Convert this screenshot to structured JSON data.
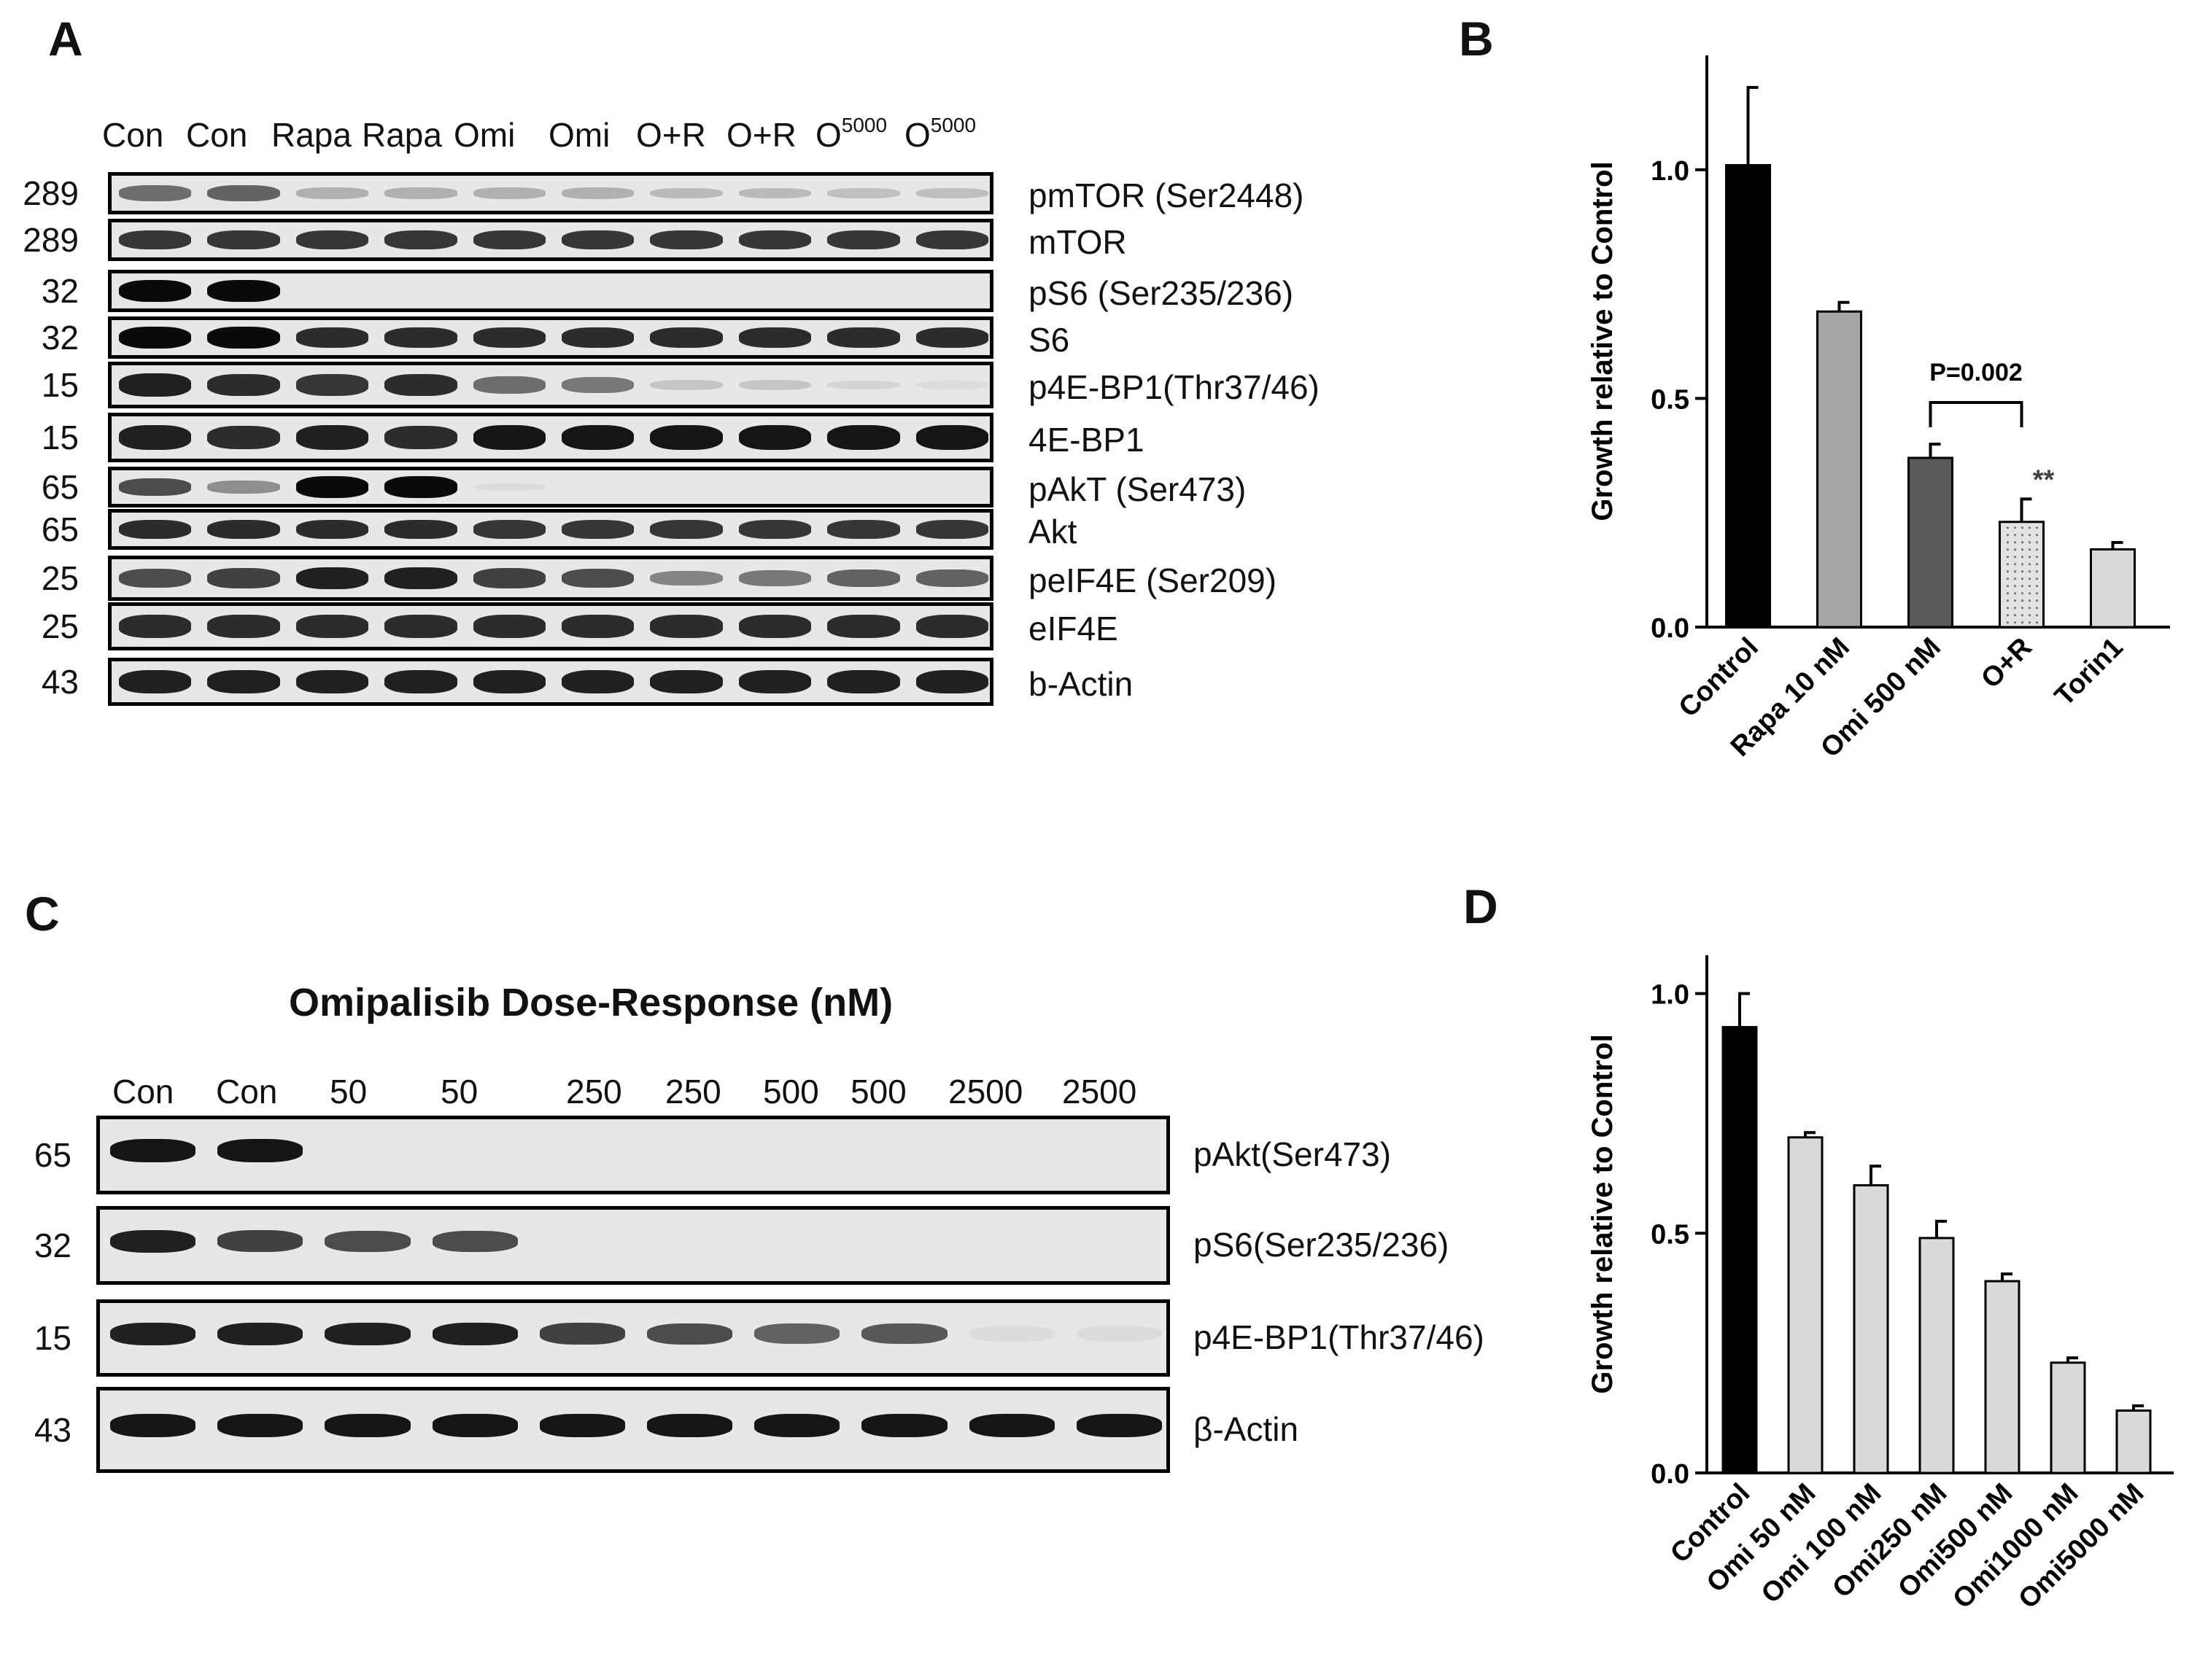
{
  "figure": {
    "panel_letters": [
      "A",
      "B",
      "C",
      "D"
    ]
  },
  "panel_a": {
    "lanes": [
      "Con",
      "Con",
      "Rapa",
      "Rapa",
      "Omi",
      "Omi",
      "O+R",
      "O+R",
      "O",
      "O"
    ],
    "lane_superscripts": [
      "",
      "",
      "",
      "",
      "",
      "",
      "",
      "",
      "5000",
      "5000"
    ],
    "rows": [
      {
        "mw": "289",
        "protein": "pmTOR  (Ser2448)"
      },
      {
        "mw": "289",
        "protein": "mTOR"
      },
      {
        "mw": "32",
        "protein": "pS6  (Ser235/236)"
      },
      {
        "mw": "32",
        "protein": "S6"
      },
      {
        "mw": "15",
        "protein": "p4E-BP1(Thr37/46)"
      },
      {
        "mw": "15",
        "protein": "4E-BP1"
      },
      {
        "mw": "65",
        "protein": "pAkT  (Ser473)"
      },
      {
        "mw": "65",
        "protein": "Akt"
      },
      {
        "mw": "25",
        "protein": "peIF4E  (Ser209)"
      },
      {
        "mw": "25",
        "protein": "eIF4E"
      },
      {
        "mw": "43",
        "protein": "b-Actin"
      }
    ]
  },
  "panel_c": {
    "title": "Omipalisib Dose-Response (nM)",
    "lanes": [
      "Con",
      "Con",
      "50",
      "50",
      "250",
      "250",
      "500",
      "500",
      "2500",
      "2500"
    ],
    "rows": [
      {
        "mw": "65",
        "protein": "pAkt(Ser473)"
      },
      {
        "mw": "32",
        "protein": "pS6(Ser235/236)"
      },
      {
        "mw": "15",
        "protein": "p4E-BP1(Thr37/46)"
      },
      {
        "mw": "43",
        "protein": "β-Actin"
      }
    ]
  },
  "chart_data": [
    {
      "type": "bar",
      "panel": "B",
      "categories": [
        "Control",
        "Rapa 10 nM",
        "Omi 500 nM",
        "O+R",
        "Torin1"
      ],
      "values": [
        1.01,
        0.69,
        0.37,
        0.23,
        0.17
      ],
      "errors": [
        0.17,
        0.02,
        0.03,
        0.05,
        0.015
      ],
      "colors": [
        "#000000",
        "#a6a6a6",
        "#595959",
        "#e3e3e3",
        "#d9d9d9"
      ],
      "ylabel": "Growth relative to Control",
      "ylim": [
        0,
        1.25
      ],
      "yticks": [
        "0.0",
        "0.5",
        "1.0"
      ],
      "annotation": "P=0.002",
      "significance": "**"
    },
    {
      "type": "bar",
      "panel": "D",
      "categories": [
        "Control",
        "Omi 50 nM",
        "Omi 100 nM",
        "Omi250 nM",
        "Omi500 nM",
        "Omi1000 nM",
        "Omi5000 nM"
      ],
      "values": [
        0.93,
        0.7,
        0.6,
        0.49,
        0.4,
        0.23,
        0.13
      ],
      "errors": [
        0.07,
        0.01,
        0.04,
        0.035,
        0.015,
        0.01,
        0.01
      ],
      "colors": [
        "#000000",
        "#d9d9d9",
        "#d9d9d9",
        "#d9d9d9",
        "#d9d9d9",
        "#d9d9d9",
        "#d9d9d9"
      ],
      "ylabel": "Growth relative to Control",
      "ylim": [
        0,
        1.08
      ],
      "yticks": [
        "0.0",
        "0.5",
        "1.0"
      ]
    }
  ]
}
